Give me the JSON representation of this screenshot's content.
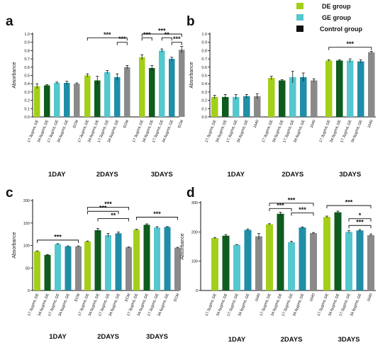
{
  "colors": {
    "DE": "#a3cf18",
    "DE_dark": "#0e5c1e",
    "GE": "#55c7ce",
    "GE_dark": "#1f8ea6",
    "ctrl": "#8a8a8a",
    "axis": "#111111"
  },
  "legend": [
    {
      "label": "DE group",
      "color": "#a3cf18"
    },
    {
      "label": "GE group",
      "color": "#55c7ce"
    },
    {
      "label": "Control group",
      "color": "#111111"
    }
  ],
  "chart_data": [
    {
      "panel": "a",
      "type": "bar",
      "ylabel": "Absorbance",
      "ylim": [
        0,
        1.0
      ],
      "yticks": [
        "0.0",
        "0.1",
        "0.2",
        "0.3",
        "0.4",
        "0.5",
        "0.6",
        "0.7",
        "0.8",
        "0.9",
        "1.0"
      ],
      "groups": [
        {
          "label": "1DAY",
          "categories": [
            "17.3μg/mL DE",
            "34.6μg/mL DE",
            "17.3μg/mL GE",
            "34.6μg/mL GE",
            "ECM"
          ],
          "values": [
            0.37,
            0.38,
            0.41,
            0.41,
            0.4
          ],
          "errors": [
            0.03,
            0.01,
            0.01,
            0.02,
            0.01
          ]
        },
        {
          "label": "2DAYS",
          "categories": [
            "17.3μg/mL DE",
            "34.6μg/mL DE",
            "17.3μg/mL GE",
            "34.6μg/mL GE",
            "ECM"
          ],
          "values": [
            0.5,
            0.44,
            0.54,
            0.48,
            0.6
          ],
          "errors": [
            0.02,
            0.05,
            0.02,
            0.04,
            0.02
          ]
        },
        {
          "label": "3DAYS",
          "categories": [
            "17.3μg/mL DE",
            "34.6μg/mL DE",
            "17.3μg/mL GE",
            "34.6μg/mL GE",
            "ECM"
          ],
          "values": [
            0.72,
            0.59,
            0.8,
            0.7,
            0.81
          ],
          "errors": [
            0.03,
            0.03,
            0.02,
            0.02,
            0.04
          ]
        }
      ],
      "annotations": [
        "***",
        "***",
        "***",
        "***",
        "**",
        "***"
      ]
    },
    {
      "panel": "b",
      "type": "bar",
      "ylabel": "Absorbance",
      "ylim": [
        0,
        1.0
      ],
      "yticks": [
        "0.0",
        "0.1",
        "0.2",
        "0.3",
        "0.4",
        "0.5",
        "0.6",
        "0.7",
        "0.8",
        "0.9",
        "1.0"
      ],
      "groups": [
        {
          "label": "1DAY",
          "categories": [
            "17.3μg/mL DE",
            "34.6μg/mL DE",
            "17.3μg/mL GE",
            "34.6μg/mL GE",
            "1640"
          ],
          "values": [
            0.24,
            0.24,
            0.24,
            0.25,
            0.25
          ],
          "errors": [
            0.02,
            0.03,
            0.03,
            0.02,
            0.03
          ]
        },
        {
          "label": "2DAYS",
          "categories": [
            "17.3μg/mL DE",
            "34.6μg/mL DE",
            "17.3μg/mL GE",
            "34.6μg/mL GE",
            "1640"
          ],
          "values": [
            0.47,
            0.44,
            0.48,
            0.48,
            0.44
          ],
          "errors": [
            0.02,
            0.01,
            0.07,
            0.05,
            0.02
          ]
        },
        {
          "label": "3DAYS",
          "categories": [
            "17.3μg/mL DE",
            "34.6μg/mL DE",
            "17.3μg/mL GE",
            "34.6μg/mL GE",
            "1640"
          ],
          "values": [
            0.68,
            0.68,
            0.68,
            0.67,
            0.78
          ],
          "errors": [
            0.01,
            0.01,
            0.02,
            0.02,
            0.01
          ]
        }
      ],
      "annotations": [
        "***"
      ]
    },
    {
      "panel": "c",
      "type": "bar",
      "ylabel": "Absorbance",
      "ylim": [
        0,
        200
      ],
      "yticks": [
        "0",
        "50",
        "100",
        "150",
        "200"
      ],
      "groups": [
        {
          "label": "1DAY",
          "categories": [
            "17.3μg/mL DE",
            "34.6μg/mL DE",
            "17.3μg/mL GE",
            "34.6μg/mL GE",
            "ECM"
          ],
          "values": [
            87,
            79,
            103,
            98,
            98
          ],
          "errors": [
            1,
            1,
            1,
            1,
            1
          ]
        },
        {
          "label": "2DAYS",
          "categories": [
            "17.3μg/mL DE",
            "34.6μg/mL DE",
            "17.3μg/mL GE",
            "34.6μg/mL GE",
            "ECM"
          ],
          "values": [
            109,
            134,
            123,
            127,
            96
          ],
          "errors": [
            1,
            4,
            4,
            3,
            1
          ]
        },
        {
          "label": "3DAYS",
          "categories": [
            "17.3μg/mL DE",
            "34.6μg/mL DE",
            "17.3μg/mL GE",
            "34.6μg/mL GE",
            "ECM"
          ],
          "values": [
            135,
            146,
            140,
            141,
            95
          ],
          "errors": [
            1,
            2,
            2,
            1,
            1
          ]
        }
      ],
      "annotations": [
        "***",
        "***",
        "***",
        "**",
        "***"
      ]
    },
    {
      "panel": "d",
      "type": "bar",
      "ylabel": "Absorbance",
      "ylim": [
        0,
        300
      ],
      "yticks": [
        "0",
        "100",
        "200",
        "300"
      ],
      "groups": [
        {
          "label": "1DAY",
          "categories": [
            "17.3μg/mL DE",
            "34.6μg/mL DE",
            "17.3μg/mL GE",
            "34.6μg/mL GE",
            "1640"
          ],
          "values": [
            179,
            187,
            156,
            207,
            185
          ],
          "errors": [
            2,
            4,
            1,
            3,
            10
          ]
        },
        {
          "label": "2DAYS",
          "categories": [
            "17.3μg/mL DE",
            "34.6μg/mL DE",
            "17.3μg/mL GE",
            "34.6μg/mL GE",
            "1640"
          ],
          "values": [
            226,
            262,
            165,
            215,
            196
          ],
          "errors": [
            2,
            5,
            3,
            2,
            2
          ]
        },
        {
          "label": "3DAYS",
          "categories": [
            "17.3μg/mL DE",
            "34.6μg/mL DE",
            "17.3μg/mL GE",
            "34.6μg/mL GE",
            "1640"
          ],
          "values": [
            251,
            267,
            200,
            205,
            189
          ],
          "errors": [
            3,
            4,
            4,
            3,
            4
          ]
        }
      ],
      "annotations": [
        "***",
        "***",
        "***",
        "***",
        "*",
        "***"
      ]
    }
  ]
}
